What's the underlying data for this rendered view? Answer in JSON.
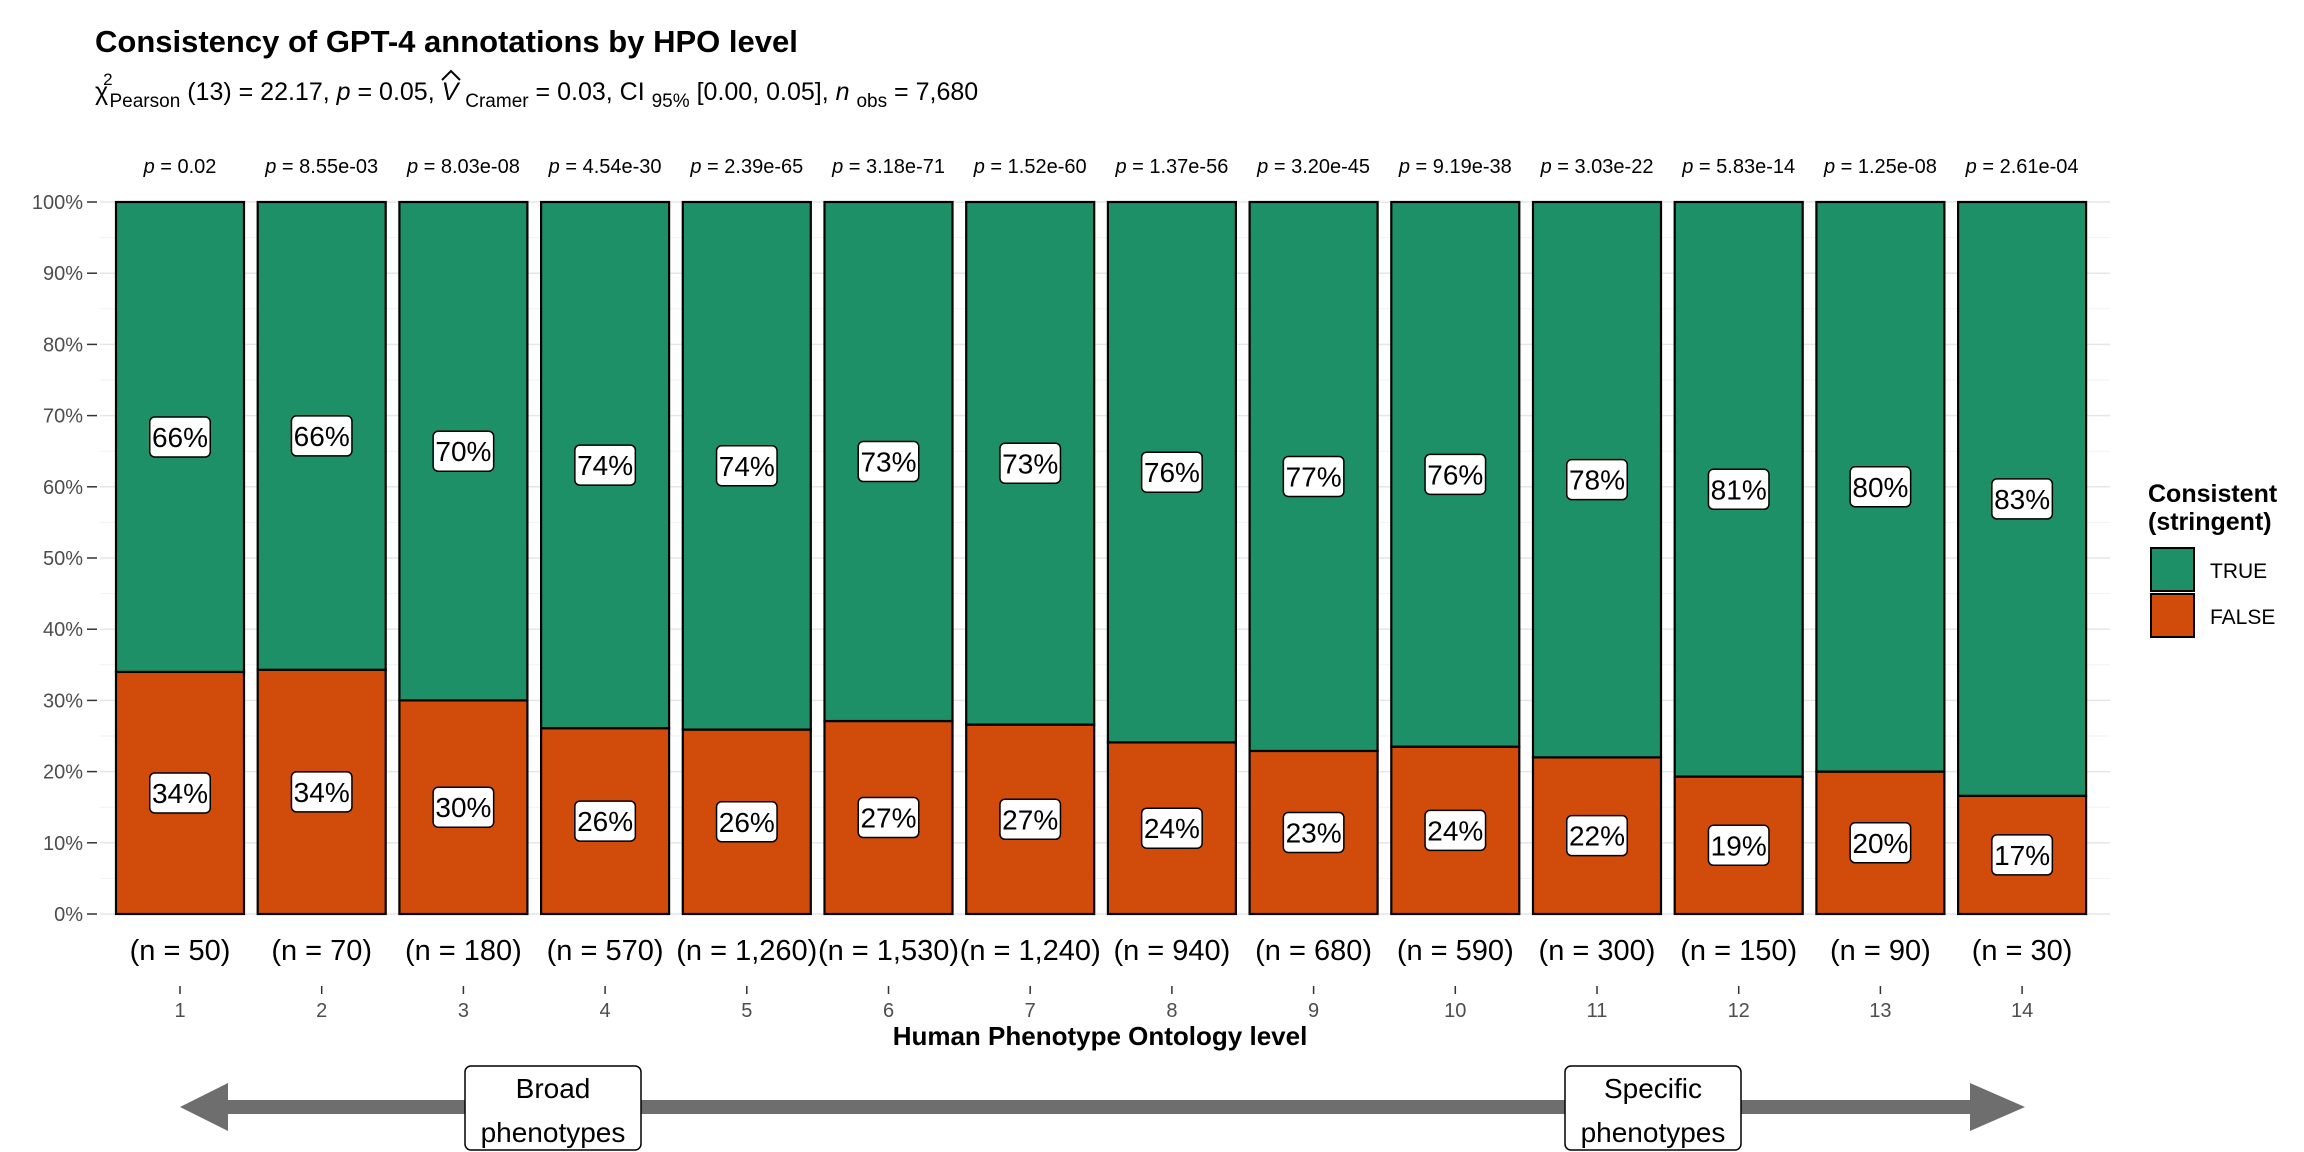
{
  "chart_data": {
    "type": "bar",
    "stacked": true,
    "percent": true,
    "title": "Consistency of GPT-4 annotations by HPO level",
    "subtitle": {
      "chi_symbol": "χ",
      "chi_sup": "2",
      "chi_sub": "Pearson",
      "chi_value": "(13) = 22.17, ",
      "p_label": "p",
      "p_value": " = 0.05, ",
      "v_symbol": "V",
      "v_sub": "Cramer",
      "v_value": " = 0.03, CI",
      "ci_sub": "95%",
      "ci_value": " [0.00, 0.05], ",
      "n_label": "n",
      "n_sub": "obs",
      "n_value": " = 7,680"
    },
    "xlabel": "Human Phenotype Ontology level",
    "ylabel": "",
    "ylim": [
      0,
      100
    ],
    "y_ticks": [
      "0%",
      "10%",
      "20%",
      "30%",
      "40%",
      "50%",
      "60%",
      "70%",
      "80%",
      "90%",
      "100%"
    ],
    "categories": [
      "1",
      "2",
      "3",
      "4",
      "5",
      "6",
      "7",
      "8",
      "9",
      "10",
      "11",
      "12",
      "13",
      "14"
    ],
    "p_values": [
      "0.02",
      "8.55e-03",
      "8.03e-08",
      "4.54e-30",
      "2.39e-65",
      "3.18e-71",
      "1.52e-60",
      "1.37e-56",
      "3.20e-45",
      "9.19e-38",
      "3.03e-22",
      "5.83e-14",
      "1.25e-08",
      "2.61e-04"
    ],
    "p_prefix": "p",
    "p_equals": " = ",
    "n_labels": [
      "(n = 50)",
      "(n = 70)",
      "(n = 180)",
      "(n = 570)",
      "(n = 1,260)",
      "(n = 1,530)",
      "(n = 1,240)",
      "(n = 940)",
      "(n = 680)",
      "(n = 590)",
      "(n = 300)",
      "(n = 150)",
      "(n = 90)",
      "(n = 30)"
    ],
    "series": [
      {
        "name": "FALSE",
        "color": "#D14B0A",
        "values": [
          34,
          34.3,
          30,
          26.1,
          25.9,
          27.1,
          26.6,
          24.1,
          22.9,
          23.5,
          22,
          19.3,
          20,
          16.6
        ],
        "labels": [
          "34%",
          "34%",
          "30%",
          "26%",
          "26%",
          "27%",
          "27%",
          "24%",
          "23%",
          "24%",
          "22%",
          "19%",
          "20%",
          "17%"
        ]
      },
      {
        "name": "TRUE",
        "color": "#1D9068",
        "values": [
          66,
          65.7,
          70,
          73.9,
          74.1,
          72.9,
          73.4,
          75.9,
          77.1,
          76.5,
          78,
          80.7,
          80,
          83.4
        ],
        "labels": [
          "66%",
          "66%",
          "70%",
          "74%",
          "74%",
          "73%",
          "73%",
          "76%",
          "77%",
          "76%",
          "78%",
          "81%",
          "80%",
          "83%"
        ]
      }
    ],
    "legend": {
      "title_line1": "Consistent",
      "title_line2": "(stringent)",
      "position": "right",
      "items": [
        {
          "name": "TRUE",
          "color": "#1D9068"
        },
        {
          "name": "FALSE",
          "color": "#D14B0A"
        }
      ]
    },
    "grid": true,
    "annotation_arrow": {
      "left_line1": "Broad",
      "left_line2": "phenotypes",
      "right_line1": "Specific",
      "right_line2": "phenotypes",
      "color": "#6E6E6E"
    }
  }
}
